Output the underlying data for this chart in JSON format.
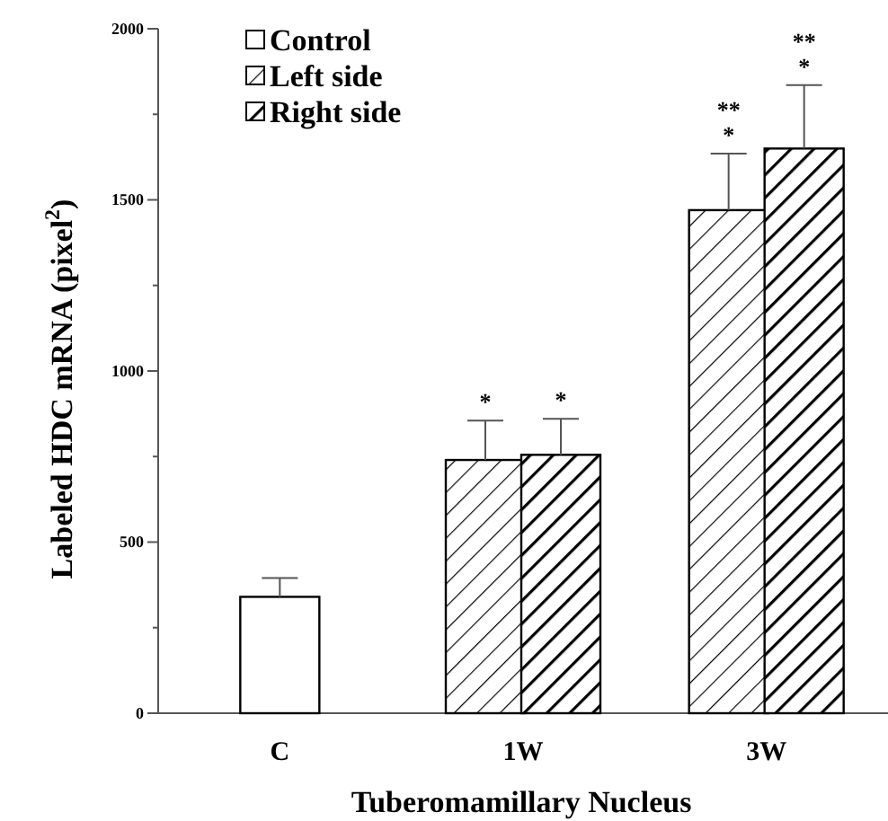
{
  "chart_data": {
    "type": "bar",
    "xlabel": "Tuberomamillary Nucleus",
    "ylabel": "Labeled HDC mRNA (pixel$^{2}$)",
    "categories": [
      "C",
      "1W",
      "3W"
    ],
    "series": [
      {
        "name": "Control",
        "color": "#ffffff",
        "values": [
          340,
          null,
          null
        ],
        "errors": [
          55,
          null,
          null
        ]
      },
      {
        "name": "Left side",
        "color": "#000000",
        "values": [
          null,
          740,
          1470
        ],
        "errors": [
          null,
          115,
          165
        ]
      },
      {
        "name": "Right side",
        "color": "#000000",
        "values": [
          null,
          755,
          1650
        ],
        "errors": [
          null,
          105,
          185
        ]
      }
    ],
    "ylim": [
      0,
      2000
    ],
    "yticks": [
      0,
      {
        "value": 250,
        "label": null
      },
      500,
      {
        "value": 750,
        "label": null
      },
      1000,
      {
        "value": 1250,
        "label": null
      },
      1500,
      {
        "value": 1750,
        "label": null
      },
      2000
    ],
    "annotations": [
      "*",
      "*",
      "**\n*",
      "**\n*"
    ],
    "legend": "top left",
    "grid": false
  }
}
